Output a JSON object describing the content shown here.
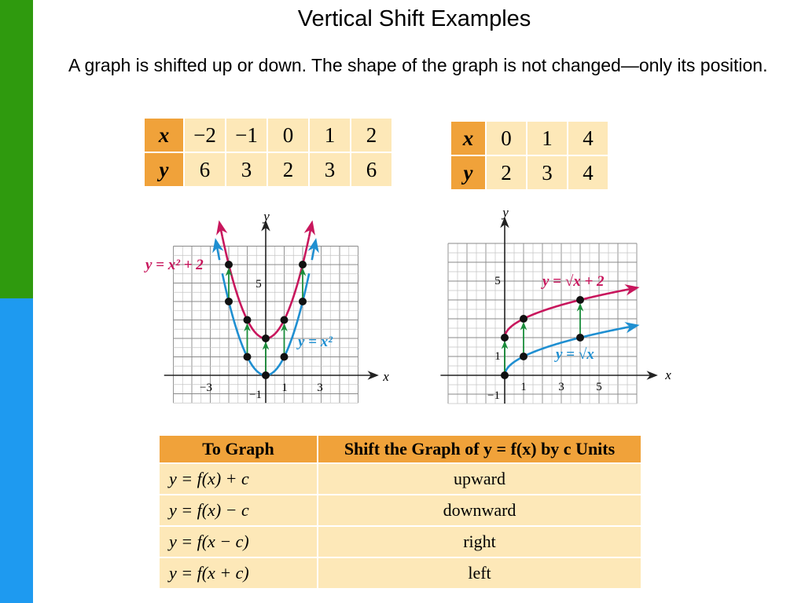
{
  "slide": {
    "title": "Vertical Shift Examples",
    "intro": "A graph is shifted up or down. The shape of the graph is not changed—only its position."
  },
  "table_parabola": {
    "x_label": "x",
    "y_label": "y",
    "x": [
      "−2",
      "−1",
      "0",
      "1",
      "2"
    ],
    "y": [
      "6",
      "3",
      "2",
      "3",
      "6"
    ]
  },
  "table_sqrt": {
    "x_label": "x",
    "y_label": "y",
    "x": [
      "0",
      "1",
      "4"
    ],
    "y": [
      "2",
      "3",
      "4"
    ]
  },
  "graph_left": {
    "x_axis": "x",
    "y_axis": "y",
    "x_ticks": [
      "−3",
      "−1",
      "1",
      "3"
    ],
    "y_ticks": [
      "5"
    ],
    "curve_shifted_label": "y = x² + 2",
    "curve_base_label": "y = x²",
    "shifted_points": [
      [
        -2,
        6
      ],
      [
        -1,
        3
      ],
      [
        0,
        2
      ],
      [
        1,
        3
      ],
      [
        2,
        6
      ]
    ],
    "base_points": [
      [
        -2,
        4
      ],
      [
        -1,
        1
      ],
      [
        0,
        0
      ],
      [
        1,
        1
      ],
      [
        2,
        4
      ]
    ],
    "colors": {
      "shifted": "#c8175d",
      "base": "#1f8fd1",
      "arrow": "#1a8c3a"
    }
  },
  "graph_right": {
    "x_axis": "x",
    "y_axis": "y",
    "x_ticks": [
      "−1",
      "1",
      "3",
      "5"
    ],
    "y_ticks": [
      "1",
      "5"
    ],
    "curve_shifted_label": "y = √x + 2",
    "curve_base_label": "y = √x",
    "shifted_points": [
      [
        0,
        2
      ],
      [
        1,
        3
      ],
      [
        4,
        4
      ]
    ],
    "base_points": [
      [
        0,
        0
      ],
      [
        1,
        1
      ],
      [
        4,
        2
      ]
    ]
  },
  "rules_table": {
    "headers": [
      "To Graph",
      "Shift the Graph of y = f(x) by c Units"
    ],
    "rows": [
      {
        "formula": "y = f(x) + c",
        "direction": "upward"
      },
      {
        "formula": "y = f(x) − c",
        "direction": "downward"
      },
      {
        "formula": "y = f(x − c)",
        "direction": "right"
      },
      {
        "formula": "y = f(x + c)",
        "direction": "left"
      }
    ]
  }
}
